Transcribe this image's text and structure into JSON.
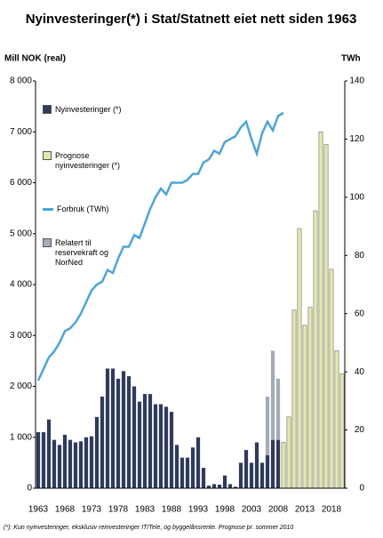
{
  "chart_data": {
    "type": "bar",
    "stacked": true,
    "title": "Nyinvesteringer(*) i Stat/Statnett eiet nett siden 1963",
    "y_label": "Mill NOK (real)",
    "y2_label": "TWh",
    "footnote": "(*): Kun nyinvesteringer, eksklusiv reinvesteringer IT/Tele, og byggelånsrente. Prognose pr. sommer 2010",
    "categories": [
      "1963",
      null,
      null,
      null,
      null,
      "1968",
      null,
      null,
      null,
      null,
      "1973",
      null,
      null,
      null,
      null,
      "1978",
      null,
      null,
      null,
      null,
      "1983",
      null,
      null,
      null,
      null,
      "1988",
      null,
      null,
      null,
      null,
      "1993",
      null,
      null,
      null,
      null,
      "1998",
      null,
      null,
      null,
      null,
      "2003",
      null,
      null,
      null,
      null,
      "2008",
      null,
      null,
      null,
      null,
      "2013",
      null,
      null,
      null,
      null,
      "2018",
      null,
      null
    ],
    "ylim": [
      0,
      8000
    ],
    "yticks": [
      {
        "value": 0,
        "label": "0"
      },
      {
        "value": 1000,
        "label": "1 000"
      },
      {
        "value": 2000,
        "label": "2 000"
      },
      {
        "value": 3000,
        "label": "3 000"
      },
      {
        "value": 4000,
        "label": "4 000"
      },
      {
        "value": 5000,
        "label": "5 000"
      },
      {
        "value": 6000,
        "label": "6 000"
      },
      {
        "value": 7000,
        "label": "7 000"
      },
      {
        "value": 8000,
        "label": "8 000"
      }
    ],
    "y2lim": [
      0,
      140
    ],
    "y2ticks": [
      0,
      20,
      40,
      60,
      80,
      100,
      120,
      140
    ],
    "grid": false,
    "legend": "top-left",
    "series": [
      {
        "name": "Nyinvesteringer (*)",
        "type": "bar",
        "color": "#2f3a5e",
        "values": [
          1100,
          1100,
          1350,
          950,
          850,
          1050,
          950,
          900,
          920,
          1000,
          1020,
          1400,
          1800,
          2350,
          2350,
          2150,
          2300,
          2200,
          2000,
          1700,
          1850,
          1850,
          1650,
          1650,
          1600,
          1500,
          850,
          600,
          600,
          800,
          1000,
          400,
          50,
          80,
          70,
          250,
          80,
          30,
          500,
          750,
          500,
          900,
          500,
          650,
          950,
          950,
          null,
          null,
          null,
          null,
          null,
          null,
          null,
          null,
          null,
          null,
          null,
          null
        ]
      },
      {
        "name": "Prognose nyinvesteringer (*)",
        "type": "bar",
        "color": "#e4e8b0",
        "values": [
          null,
          null,
          null,
          null,
          null,
          null,
          null,
          null,
          null,
          null,
          null,
          null,
          null,
          null,
          null,
          null,
          null,
          null,
          null,
          null,
          null,
          null,
          null,
          null,
          null,
          null,
          null,
          null,
          null,
          null,
          null,
          null,
          null,
          null,
          null,
          null,
          null,
          null,
          null,
          null,
          null,
          null,
          null,
          null,
          null,
          null,
          900,
          1400,
          3500,
          5100,
          3200,
          3550,
          5450,
          7000,
          6750,
          4300,
          2700,
          2250
        ]
      },
      {
        "name": "Forbruk (TWh)",
        "type": "line",
        "axis": "y2",
        "color": "#4ba5d6",
        "values": [
          37,
          41,
          45,
          47,
          50,
          54,
          55,
          57,
          60,
          64,
          68,
          70,
          71,
          75,
          74,
          79,
          83,
          83,
          87,
          86,
          91,
          96,
          100,
          103,
          101,
          105,
          105,
          105,
          106,
          108,
          108,
          112,
          113,
          116,
          115,
          119,
          120,
          121,
          124,
          126,
          120,
          115,
          122,
          126,
          123,
          128,
          129,
          null,
          null,
          null,
          null,
          null,
          null,
          null,
          null,
          null,
          null,
          null
        ]
      },
      {
        "name": "Relatert til reservekraft og NorNed",
        "type": "bar",
        "color": "#a4abb8",
        "values": [
          null,
          null,
          null,
          null,
          null,
          null,
          null,
          null,
          null,
          null,
          null,
          null,
          null,
          null,
          null,
          null,
          null,
          null,
          null,
          null,
          null,
          null,
          null,
          null,
          null,
          null,
          null,
          null,
          null,
          null,
          null,
          null,
          null,
          null,
          null,
          null,
          null,
          null,
          null,
          null,
          null,
          null,
          null,
          1150,
          1750,
          1200,
          null,
          null,
          null,
          null,
          null,
          null,
          null,
          null,
          null,
          null,
          null,
          null
        ]
      }
    ]
  }
}
